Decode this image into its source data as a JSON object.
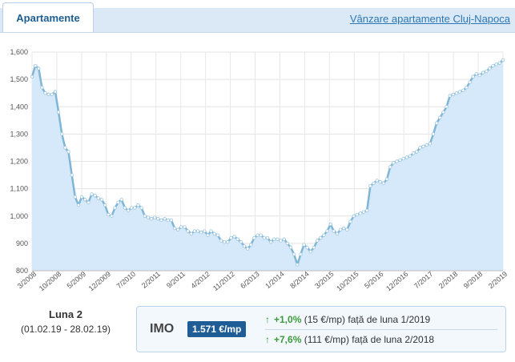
{
  "header": {
    "tab_label": "Apartamente",
    "link_label": "Vânzare apartamente Cluj-Napoca"
  },
  "footer": {
    "luna_title": "Luna 2",
    "luna_range": "(01.02.19 - 28.02.19)",
    "imo_label": "IMO",
    "imo_value": "1.571 €/mp",
    "stats": [
      {
        "arrow": "↑",
        "pct": "+1,0%",
        "abs": "(15 €/mp)",
        "text": "față de luna 1/2019"
      },
      {
        "arrow": "↑",
        "pct": "+7,6%",
        "abs": "(111 €/mp)",
        "text": "față de luna 2/2018"
      }
    ]
  },
  "colors": {
    "line": "#7fb5d6",
    "area": "#d6e9fa",
    "positive": "#3c9a3c",
    "accent": "#1f5d96"
  },
  "chart_data": {
    "type": "area",
    "ylim": [
      800,
      1600
    ],
    "yticks": [
      800,
      900,
      1000,
      1100,
      1200,
      1300,
      1400,
      1500,
      1600
    ],
    "ytick_labels": [
      "800",
      "900",
      "1,000",
      "1,100",
      "1,200",
      "1,300",
      "1,400",
      "1,500",
      "1,600"
    ],
    "xtick_labels": [
      "3/2008",
      "10/2008",
      "5/2009",
      "12/2009",
      "7/2010",
      "2/2011",
      "9/2011",
      "4/2012",
      "11/2012",
      "6/2013",
      "1/2014",
      "8/2014",
      "3/2015",
      "10/2015",
      "5/2016",
      "12/2016",
      "7/2017",
      "2/2018",
      "9/2018",
      "2/2019"
    ],
    "grid": true,
    "series": [
      {
        "values": [
          1510,
          1550,
          1540,
          1470,
          1450,
          1445,
          1445,
          1455,
          1380,
          1300,
          1250,
          1235,
          1150,
          1070,
          1040,
          1070,
          1060,
          1050,
          1080,
          1075,
          1065,
          1060,
          1040,
          1005,
          1000,
          1030,
          1050,
          1060,
          1030,
          1020,
          1030,
          1030,
          1040,
          1030,
          1000,
          995,
          990,
          995,
          990,
          985,
          990,
          985,
          985,
          955,
          950,
          960,
          960,
          945,
          935,
          945,
          945,
          940,
          945,
          930,
          945,
          935,
          930,
          910,
          905,
          905,
          920,
          925,
          915,
          905,
          890,
          880,
          895,
          920,
          930,
          930,
          920,
          920,
          905,
          915,
          915,
          910,
          915,
          900,
          885,
          860,
          822,
          860,
          895,
          885,
          870,
          885,
          910,
          920,
          930,
          945,
          970,
          945,
          935,
          950,
          955,
          950,
          980,
          1000,
          1005,
          1010,
          1015,
          1020,
          1110,
          1120,
          1130,
          1125,
          1120,
          1135,
          1180,
          1195,
          1200,
          1205,
          1210,
          1215,
          1220,
          1230,
          1235,
          1250,
          1255,
          1260,
          1265,
          1300,
          1340,
          1360,
          1380,
          1400,
          1440,
          1445,
          1450,
          1455,
          1460,
          1470,
          1490,
          1510,
          1520,
          1515,
          1525,
          1530,
          1540,
          1550,
          1555,
          1560,
          1571
        ]
      }
    ]
  }
}
